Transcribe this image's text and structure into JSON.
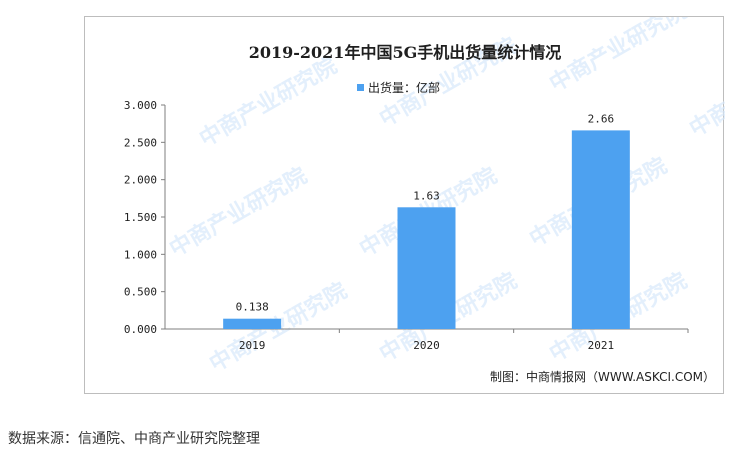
{
  "chart_data": {
    "type": "bar",
    "title": "2019-2021年中国5G手机出货量统计情况",
    "legend": [
      "出货量：亿部"
    ],
    "categories": [
      "2019",
      "2020",
      "2021"
    ],
    "series": [
      {
        "name": "出货量：亿部",
        "values": [
          0.138,
          1.63,
          2.66
        ],
        "data_labels": [
          "0.138",
          "1.63",
          "2.66"
        ],
        "color": "#4da1f0"
      }
    ],
    "yticks": [
      "0.000",
      "0.500",
      "1.000",
      "1.500",
      "2.000",
      "2.500",
      "3.000"
    ],
    "ylim": [
      0,
      3
    ],
    "grid": false,
    "legend_position": "top-center",
    "watermark": "中商产业研究院"
  },
  "credit": "制图：中商情报网（WWW.ASKCI.COM）",
  "source_note": "数据来源：信通院、中商产业研究院整理"
}
